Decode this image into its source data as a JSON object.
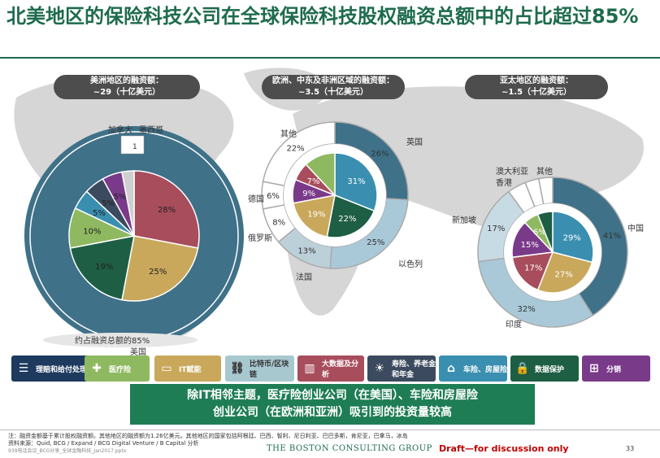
{
  "title": "北美地区的保险科技公司在全球保险科技股权融资总额中的占比超过85%",
  "region_headers": [
    {
      "line1": "美洲地区的融资额：",
      "line2": "~29（十亿美元）"
    },
    {
      "line1": "欧洲、中东及非洲区域的融资额：",
      "line2": "~3.5（十亿美元）"
    },
    {
      "line1": "亚太地区的融资额：",
      "line2": "~1.5（十亿美元）"
    }
  ],
  "chart_data": [
    {
      "type": "pie",
      "title": "美洲地区的融资额：~29（十亿美元）",
      "outer_ring": [
        {
          "label": "美国",
          "value": 85
        },
        {
          "label": "加拿大",
          "value": 1
        },
        {
          "label": "墨西哥",
          "value": 1
        }
      ],
      "inner_pie": [
        {
          "label": "28%",
          "value": 28,
          "color": "#a84d5c"
        },
        {
          "label": "25%",
          "value": 25,
          "color": "#c9a85c"
        },
        {
          "label": "19%",
          "value": 19,
          "color": "#1e5e44"
        },
        {
          "label": "10%",
          "value": 10,
          "color": "#8fb960"
        },
        {
          "label": "5%",
          "value": 5,
          "color": "#3a8fb0"
        },
        {
          "label": "5%",
          "value": 5,
          "color": "#3b4a5e"
        },
        {
          "label": "5%",
          "value": 5,
          "color": "#7a3a8a"
        },
        {
          "label": "",
          "value": 3,
          "color": "#cfcfcf"
        }
      ],
      "annotations": [
        "加拿大",
        "墨西哥",
        "1",
        "约占融资总额的85%",
        "美国"
      ]
    },
    {
      "type": "pie",
      "title": "欧洲、中东及非洲区域的融资额：~3.5（十亿美元）",
      "outer_ring": [
        {
          "label": "英国",
          "value": 26
        },
        {
          "label": "以色列",
          "value": 25
        },
        {
          "label": "法国",
          "value": 13
        },
        {
          "label": "俄罗斯",
          "value": 8
        },
        {
          "label": "德国",
          "value": 6
        },
        {
          "label": "其他",
          "value": 22
        }
      ],
      "outer_labels": [
        "26%",
        "25%",
        "13%",
        "8%",
        "6%",
        "22%"
      ],
      "inner_pie": [
        {
          "label": "31%",
          "value": 31,
          "color": "#3a8fb0"
        },
        {
          "label": "22%",
          "value": 22,
          "color": "#1e5e44"
        },
        {
          "label": "19%",
          "value": 19,
          "color": "#c9a85c"
        },
        {
          "label": "9%",
          "value": 9,
          "color": "#7a3a8a"
        },
        {
          "label": "7%",
          "value": 7,
          "color": "#a84d5c"
        },
        {
          "label": "",
          "value": 12,
          "color": "#8fb960"
        }
      ]
    },
    {
      "type": "pie",
      "title": "亚太地区的融资额：~1.5（十亿美元）",
      "outer_ring": [
        {
          "label": "中国",
          "value": 41
        },
        {
          "label": "印度",
          "value": 32
        },
        {
          "label": "新加坡",
          "value": 17
        },
        {
          "label": "香港",
          "value": 4
        },
        {
          "label": "澳大利亚",
          "value": 3
        },
        {
          "label": "其他",
          "value": 3
        }
      ],
      "outer_labels": [
        "41%",
        "32%",
        "17%"
      ],
      "inner_pie": [
        {
          "label": "29%",
          "value": 29,
          "color": "#3a8fb0"
        },
        {
          "label": "27%",
          "value": 27,
          "color": "#c9a85c"
        },
        {
          "label": "17%",
          "value": 17,
          "color": "#a84d5c"
        },
        {
          "label": "15%",
          "value": 15,
          "color": "#7a3a8a"
        },
        {
          "label": "6%",
          "value": 6,
          "color": "#8fb960"
        },
        {
          "label": "",
          "value": 6,
          "color": "#1e5e44"
        }
      ]
    }
  ],
  "legend": [
    {
      "label": "理赔和给付处理",
      "color": "#1e3a5f",
      "icon": "claims-icon"
    },
    {
      "label": "医疗险",
      "color": "#8fb960",
      "icon": "health-icon"
    },
    {
      "label": "IT赋能",
      "color": "#c9a85c",
      "icon": "it-icon"
    },
    {
      "label": "比特币/区块链",
      "color": "#a8c8d0",
      "icon": "blockchain-icon"
    },
    {
      "label": "大数据及分析",
      "color": "#a84d5c",
      "icon": "bigdata-icon"
    },
    {
      "label": "寿险、养老金和年金",
      "color": "#3b4a5e",
      "icon": "life-icon"
    },
    {
      "label": "车险、房屋险",
      "color": "#3a8fb0",
      "icon": "auto-icon"
    },
    {
      "label": "数据保护",
      "color": "#1e5e44",
      "icon": "lock-icon"
    },
    {
      "label": "分销",
      "color": "#7a3a8a",
      "icon": "distribution-icon"
    }
  ],
  "callout": {
    "line1": "除IT相邻主题，医疗险创业公司（在美国）、车险和房屋险",
    "line2": "创业公司（在欧洲和亚洲）吸引到的投资量较高"
  },
  "footer": {
    "note": "注：融资金额基于累计股权融资额。其他地区的融资额为1.26亿美元。其他地区的国家包括阿根廷、巴西、智利、尼日利亚、巴巴多斯，肯尼亚，巴拿马，冰岛",
    "source": "资料来源：Quid, BCG / Expand / BCG Digital Venture / B Capital 分析",
    "file": "939电话会议_BCG分享_全球金融科技_Jan2017.pptx",
    "company": "THE BOSTON CONSULTING GROUP",
    "draft": "Draft—for discussion only",
    "page": "33"
  }
}
